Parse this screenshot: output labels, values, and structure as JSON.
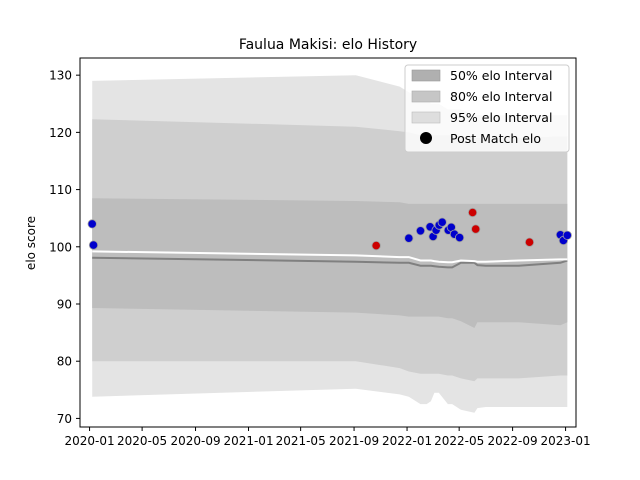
{
  "chart_data": {
    "type": "line",
    "title": "Faulua Makisi: elo History",
    "ylabel": "elo score",
    "xlabel": "",
    "xlim": [
      "2019-12-10",
      "2023-01-25"
    ],
    "ylim": [
      68.5,
      133
    ],
    "x_ticks": [
      "2020-01",
      "2020-05",
      "2020-09",
      "2021-01",
      "2021-05",
      "2021-09",
      "2022-01",
      "2022-05",
      "2022-09",
      "2023-01"
    ],
    "x_tick_dates": [
      "2020-01-01",
      "2020-05-01",
      "2020-09-01",
      "2021-01-01",
      "2021-05-01",
      "2021-09-01",
      "2022-01-01",
      "2022-05-01",
      "2022-09-01",
      "2023-01-01"
    ],
    "y_ticks": [
      70,
      80,
      90,
      100,
      110,
      120,
      130
    ],
    "grid": false,
    "legend_position": "top-right",
    "legend": [
      "50% elo Interval",
      "80% elo Interval",
      "95% elo Interval",
      "Post Match elo"
    ],
    "bands": {
      "dates": [
        "2020-01-07",
        "2021-09-05",
        "2021-12-15",
        "2022-01-05",
        "2022-02-01",
        "2022-02-15",
        "2022-02-25",
        "2022-03-05",
        "2022-03-15",
        "2022-04-05",
        "2022-04-15",
        "2022-05-05",
        "2022-06-05",
        "2022-06-12",
        "2022-07-01",
        "2022-09-15",
        "2022-12-20",
        "2023-01-05"
      ],
      "band_95": {
        "upper": [
          129,
          130,
          128,
          127,
          126,
          126,
          125,
          125,
          125,
          124,
          124,
          124,
          123,
          123,
          123,
          123,
          123,
          123
        ],
        "lower": [
          73.8,
          75.2,
          74.2,
          73.8,
          72.5,
          72.5,
          73,
          74.5,
          74.5,
          72.5,
          72.5,
          71.5,
          71,
          71.8,
          72,
          72,
          72,
          72
        ]
      },
      "band_80": {
        "upper": [
          122.3,
          121,
          120.2,
          120,
          119.5,
          119.5,
          119.5,
          119.5,
          119.5,
          119.5,
          119.5,
          119.3,
          119,
          119,
          119,
          119,
          119.3,
          119.3
        ],
        "lower": [
          80,
          80,
          78.8,
          78.2,
          77.8,
          77.8,
          77.8,
          77.8,
          77.8,
          77.5,
          77.5,
          77,
          76.5,
          77,
          77,
          77,
          77.5,
          77.5
        ]
      },
      "band_50": {
        "upper": [
          108.5,
          108,
          107.8,
          107.5,
          107.5,
          107.5,
          107.5,
          107.5,
          107.5,
          107.5,
          107.5,
          107.5,
          107.5,
          107.5,
          107.5,
          107.5,
          107.5,
          107.5
        ],
        "lower": [
          89.3,
          88.5,
          88,
          87.8,
          87.8,
          87.8,
          87.8,
          87.8,
          87.8,
          87.5,
          87.5,
          87,
          85.8,
          86.8,
          86.8,
          86.8,
          86.3,
          86.8
        ]
      }
    },
    "series": [
      {
        "style": "mean",
        "color": "#808080",
        "x": [
          "2020-01-07",
          "2021-09-05",
          "2021-12-15",
          "2022-01-05",
          "2022-02-01",
          "2022-02-15",
          "2022-02-25",
          "2022-03-05",
          "2022-03-15",
          "2022-04-05",
          "2022-04-15",
          "2022-05-05",
          "2022-06-05",
          "2022-06-12",
          "2022-07-01",
          "2022-09-15",
          "2022-12-20",
          "2023-01-05"
        ],
        "y": [
          98.1,
          97.4,
          97.2,
          97.2,
          96.7,
          96.7,
          96.7,
          96.6,
          96.5,
          96.4,
          96.4,
          97.2,
          97.2,
          96.8,
          96.7,
          96.7,
          97.2,
          97.6
        ]
      },
      {
        "style": "median",
        "color": "#ffffff",
        "x": [
          "2020-01-07",
          "2021-09-05",
          "2021-12-15",
          "2022-01-05",
          "2022-02-01",
          "2022-02-15",
          "2022-02-25",
          "2022-03-05",
          "2022-03-15",
          "2022-04-05",
          "2022-04-15",
          "2022-05-05",
          "2022-06-05",
          "2022-06-12",
          "2022-07-01",
          "2022-09-15",
          "2022-12-20",
          "2023-01-05"
        ],
        "y": [
          99.2,
          98.5,
          98.2,
          98.2,
          97.6,
          97.6,
          97.6,
          97.5,
          97.4,
          97.3,
          97.3,
          97.6,
          97.5,
          97.4,
          97.4,
          97.6,
          97.8,
          97.8
        ]
      },
      {
        "name": "Post Match elo",
        "style": "points",
        "points": [
          {
            "x": "2020-01-07",
            "y": 104.0,
            "color": "#0000cc"
          },
          {
            "x": "2020-01-10",
            "y": 100.3,
            "color": "#0000cc"
          },
          {
            "x": "2021-10-22",
            "y": 100.2,
            "color": "#cc0000"
          },
          {
            "x": "2022-01-05",
            "y": 101.5,
            "color": "#0000cc"
          },
          {
            "x": "2022-02-01",
            "y": 102.8,
            "color": "#0000cc"
          },
          {
            "x": "2022-02-23",
            "y": 103.5,
            "color": "#0000cc"
          },
          {
            "x": "2022-03-02",
            "y": 101.8,
            "color": "#0000cc"
          },
          {
            "x": "2022-03-09",
            "y": 102.9,
            "color": "#0000cc"
          },
          {
            "x": "2022-03-16",
            "y": 103.8,
            "color": "#0000cc"
          },
          {
            "x": "2022-03-23",
            "y": 104.3,
            "color": "#0000cc"
          },
          {
            "x": "2022-04-06",
            "y": 102.9,
            "color": "#0000cc"
          },
          {
            "x": "2022-04-13",
            "y": 103.4,
            "color": "#0000cc"
          },
          {
            "x": "2022-04-20",
            "y": 102.2,
            "color": "#0000cc"
          },
          {
            "x": "2022-05-02",
            "y": 101.6,
            "color": "#0000cc"
          },
          {
            "x": "2022-06-01",
            "y": 106.0,
            "color": "#cc0000"
          },
          {
            "x": "2022-06-08",
            "y": 103.1,
            "color": "#cc0000"
          },
          {
            "x": "2022-10-10",
            "y": 100.8,
            "color": "#cc0000"
          },
          {
            "x": "2022-12-20",
            "y": 102.1,
            "color": "#0000cc"
          },
          {
            "x": "2022-12-27",
            "y": 101.1,
            "color": "#0000cc"
          },
          {
            "x": "2023-01-05",
            "y": 102.0,
            "color": "#0000cc"
          }
        ]
      }
    ],
    "colors": {
      "band_95": "#e4e4e4",
      "band_80": "#cfcfcf",
      "band_50": "#bdbdbd",
      "legend_50": "#b0b0b0",
      "legend_80": "#c6c6c6",
      "legend_95": "#dedede",
      "point_edge": "#a0a0a0",
      "axis": "#000000"
    }
  }
}
